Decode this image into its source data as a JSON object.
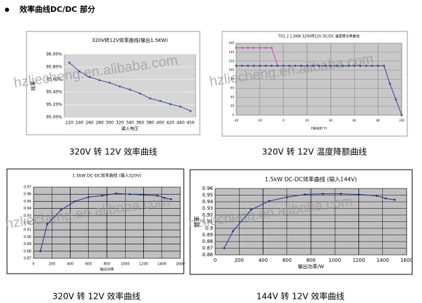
{
  "heading": "效率曲线DC/DC 部分",
  "watermark": "hzliecheng.en.alibaba.com",
  "captions": [
    "320V 转 12V 效率曲线",
    "320V 转 12V 温度降额曲线",
    "320V 转 12V 效率曲线",
    "144V 转 12V 效率曲线"
  ],
  "chart_data": [
    {
      "type": "line",
      "title": "320V转12V效率曲线(输出1.5KW)",
      "x_label": "输入电压",
      "y_label": "效率",
      "categories": [
        "220",
        "240",
        "260",
        "280",
        "300",
        "320",
        "340",
        "360",
        "380",
        "400",
        "420",
        "440",
        "450"
      ],
      "series": [
        {
          "color": "#4b4b94",
          "values": [
            95.87,
            95.73,
            95.64,
            95.59,
            95.55,
            95.49,
            95.44,
            95.38,
            95.3,
            95.26,
            95.21,
            95.17,
            95.1
          ]
        }
      ],
      "ylim": [
        95,
        96
      ],
      "yticks": [
        {
          "value": 95,
          "label": "95.00%"
        },
        {
          "value": 95.2,
          "label": "95.20%"
        },
        {
          "value": 95.4,
          "label": "95.40%"
        },
        {
          "value": 95.6,
          "label": "95.60%"
        },
        {
          "value": 95.8,
          "label": "95.80%"
        },
        {
          "value": 96,
          "label": "96.00%"
        }
      ],
      "grid": true,
      "plot_color": "#d6d6d6",
      "grid_color": "#ffffff"
    },
    {
      "type": "line",
      "title": "TD1.2 1.5KW 320V转12V DC/DC 温度降功率曲线",
      "x_label": "内箱温度(℃)",
      "x": [
        -40,
        -35,
        -30,
        -25,
        -20,
        -15,
        -10,
        -5,
        0,
        5,
        10,
        15,
        20,
        25,
        30,
        35,
        40,
        45,
        50,
        55,
        60,
        65,
        70,
        75,
        80,
        85,
        90,
        95,
        100
      ],
      "series": [
        {
          "color": "#e040c0",
          "values": [
            150,
            150,
            150,
            150,
            150,
            150,
            150,
            110,
            null,
            null,
            null,
            null,
            null,
            null,
            null,
            null,
            null,
            null,
            null,
            null,
            null,
            null,
            null,
            null,
            null,
            null,
            null,
            null,
            null
          ]
        },
        {
          "color": "#3040a0",
          "values": [
            110,
            110,
            110,
            110,
            110,
            110,
            110,
            110,
            110,
            110,
            110,
            110,
            110,
            110,
            110,
            110,
            110,
            110,
            110,
            110,
            110,
            110,
            110,
            110,
            110,
            110,
            70,
            35,
            0
          ]
        }
      ],
      "xlim": [
        -40,
        100
      ],
      "xticks": [
        -40,
        -20,
        0,
        20,
        40,
        60,
        80,
        100
      ],
      "ylim": [
        0,
        160
      ],
      "yticks": [
        0,
        20,
        40,
        60,
        80,
        100,
        120,
        140,
        160
      ],
      "grid": true,
      "plot_color": "#c8c8c8",
      "grid_color": "#888888"
    },
    {
      "type": "line",
      "title": "1.5kW DC-DC效率曲线 (输入320V)",
      "x_label": "输出功率",
      "x": [
        75,
        150,
        300,
        450,
        600,
        750,
        900,
        1050,
        1200,
        1350,
        1425,
        1500
      ],
      "series": [
        {
          "color": "#1f2f8f",
          "values": [
            0.88,
            0.918,
            0.938,
            0.95,
            0.956,
            0.958,
            0.961,
            0.96,
            0.959,
            0.958,
            0.955,
            0.953
          ]
        }
      ],
      "xlim": [
        0,
        1600
      ],
      "xticks": [
        0,
        200,
        400,
        600,
        800,
        1000,
        1200,
        1400,
        1600
      ],
      "ylim": [
        0.87,
        0.97
      ],
      "yticks": [
        0.87,
        0.88,
        0.89,
        {
          "value": 0.9,
          "label": "0.90"
        },
        0.91,
        0.92,
        0.93,
        0.94,
        0.95,
        0.96,
        0.97
      ],
      "grid": true,
      "plot_color": "#c0c0c0",
      "grid_color": "#000000"
    },
    {
      "type": "line",
      "title": "1.5kW DC-DC效率曲线 (输入144V)",
      "x_label": "输出功率/W",
      "y_label": "效率",
      "x": [
        75,
        150,
        300,
        450,
        600,
        750,
        900,
        1050,
        1200,
        1350,
        1425,
        1500
      ],
      "series": [
        {
          "color": "#1f2f8f",
          "values": [
            0.87,
            0.896,
            0.928,
            0.941,
            0.947,
            0.951,
            0.952,
            0.952,
            0.951,
            0.949,
            0.945,
            0.943
          ]
        }
      ],
      "xlim": [
        0,
        1600
      ],
      "xticks": [
        0,
        200,
        400,
        600,
        800,
        1000,
        1200,
        1400,
        1600
      ],
      "ylim": [
        0.86,
        0.96
      ],
      "yticks": [
        0.86,
        0.87,
        0.88,
        0.89,
        0.9,
        0.91,
        0.92,
        0.93,
        0.94,
        0.95,
        0.96
      ],
      "grid": true,
      "plot_color": "#c0c0c0",
      "grid_color": "#000000"
    }
  ]
}
